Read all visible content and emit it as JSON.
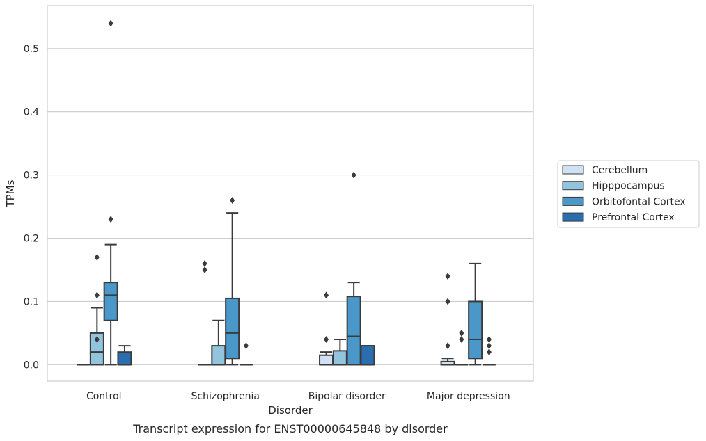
{
  "chart_data": {
    "type": "boxplot",
    "title": "",
    "caption": "Transcript expression for ENST00000645848 by disorder",
    "xlabel": "Disorder",
    "ylabel": "TPMs",
    "ylim": [
      -0.026,
      0.568
    ],
    "yticks": [
      "0.0",
      "0.1",
      "0.2",
      "0.3",
      "0.4",
      "0.5"
    ],
    "grid": "horizontal",
    "legend_position": "right",
    "categories": [
      "Control",
      "Schizophrenia",
      "Bipolar disorder",
      "Major depression"
    ],
    "series": [
      {
        "name": "Cerebellum",
        "color": "#cfe1f2",
        "boxes": [
          {
            "q1": 0,
            "median": 0,
            "q3": 0,
            "whisker_low": 0,
            "whisker_high": 0,
            "outliers": []
          },
          {
            "q1": 0,
            "median": 0,
            "q3": 0,
            "whisker_low": 0,
            "whisker_high": 0,
            "outliers": [
              0.15,
              0.16
            ]
          },
          {
            "q1": 0,
            "median": 0,
            "q3": 0.015,
            "whisker_low": 0,
            "whisker_high": 0.02,
            "outliers": [
              0.04,
              0.11
            ]
          },
          {
            "q1": 0,
            "median": 0,
            "q3": 0.005,
            "whisker_low": 0,
            "whisker_high": 0.01,
            "outliers": [
              0.03,
              0.1,
              0.14
            ]
          }
        ]
      },
      {
        "name": "Hipppocampus",
        "color": "#93c4de",
        "boxes": [
          {
            "q1": 0,
            "median": 0.02,
            "q3": 0.05,
            "whisker_low": 0,
            "whisker_high": 0.09,
            "outliers": [
              0.04,
              0.11,
              0.17
            ]
          },
          {
            "q1": 0,
            "median": 0,
            "q3": 0.03,
            "whisker_low": 0,
            "whisker_high": 0.07,
            "outliers": []
          },
          {
            "q1": 0,
            "median": 0,
            "q3": 0.022,
            "whisker_low": 0,
            "whisker_high": 0.04,
            "outliers": []
          },
          {
            "q1": 0,
            "median": 0,
            "q3": 0,
            "whisker_low": 0,
            "whisker_high": 0,
            "outliers": [
              0.04,
              0.05
            ]
          }
        ]
      },
      {
        "name": "Orbitofontal Cortex",
        "color": "#4a98c9",
        "boxes": [
          {
            "q1": 0.07,
            "median": 0.11,
            "q3": 0.13,
            "whisker_low": 0,
            "whisker_high": 0.19,
            "outliers": [
              0.23,
              0.54
            ]
          },
          {
            "q1": 0.01,
            "median": 0.05,
            "q3": 0.105,
            "whisker_low": 0,
            "whisker_high": 0.24,
            "outliers": [
              0.26
            ]
          },
          {
            "q1": 0,
            "median": 0.045,
            "q3": 0.108,
            "whisker_low": 0,
            "whisker_high": 0.13,
            "outliers": [
              0.3
            ]
          },
          {
            "q1": 0.01,
            "median": 0.04,
            "q3": 0.1,
            "whisker_low": 0,
            "whisker_high": 0.16,
            "outliers": []
          }
        ]
      },
      {
        "name": "Prefrontal Cortex",
        "color": "#2a6eb0",
        "boxes": [
          {
            "q1": 0,
            "median": 0,
            "q3": 0.02,
            "whisker_low": 0,
            "whisker_high": 0.03,
            "outliers": []
          },
          {
            "q1": 0,
            "median": 0,
            "q3": 0,
            "whisker_low": 0,
            "whisker_high": 0,
            "outliers": [
              0.03
            ]
          },
          {
            "q1": 0,
            "median": 0,
            "q3": 0.03,
            "whisker_low": 0,
            "whisker_high": 0.03,
            "outliers": []
          },
          {
            "q1": 0,
            "median": 0,
            "q3": 0,
            "whisker_low": 0,
            "whisker_high": 0,
            "outliers": [
              0.02,
              0.03,
              0.04
            ]
          }
        ]
      }
    ]
  }
}
